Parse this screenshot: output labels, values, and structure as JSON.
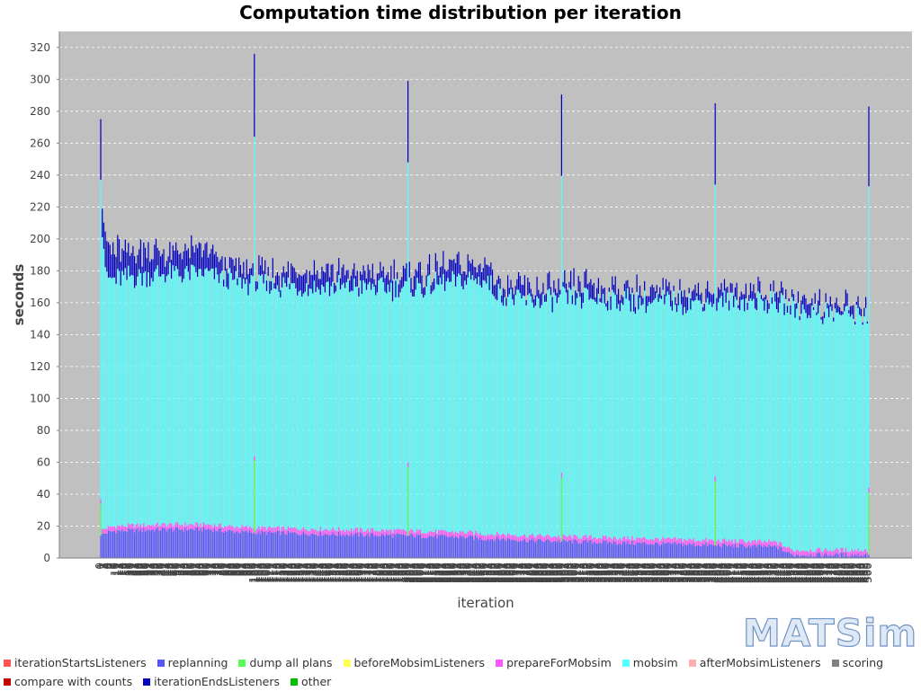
{
  "chart_data": {
    "type": "bar",
    "stacked": true,
    "title": "Computation time distribution per iteration",
    "xlabel": "iteration",
    "ylabel": "seconds",
    "ylim": [
      0,
      330
    ],
    "yticks": [
      0,
      20,
      40,
      60,
      80,
      100,
      120,
      140,
      160,
      180,
      200,
      220,
      240,
      260,
      280,
      300,
      320
    ],
    "x_range": [
      0,
      500
    ],
    "grid": true,
    "legend_position": "bottom",
    "legend": [
      {
        "name": "iterationStartsListeners",
        "color": "#ff5555"
      },
      {
        "name": "replanning",
        "color": "#5555ff"
      },
      {
        "name": "dump all plans",
        "color": "#55ff55"
      },
      {
        "name": "beforeMobsimListeners",
        "color": "#ffff55"
      },
      {
        "name": "prepareForMobsim",
        "color": "#ff55ff"
      },
      {
        "name": "mobsim",
        "color": "#55ffff"
      },
      {
        "name": "afterMobsimListeners",
        "color": "#ffafaf"
      },
      {
        "name": "scoring",
        "color": "#808080"
      },
      {
        "name": "compare with counts",
        "color": "#c00000"
      },
      {
        "name": "iterationEndsListeners",
        "color": "#0000c0"
      },
      {
        "name": "other",
        "color": "#00c000"
      }
    ],
    "segments": {
      "x": [
        0,
        4,
        10,
        40,
        70,
        80,
        100,
        200,
        240,
        250,
        260,
        280,
        320,
        360,
        400,
        440,
        450,
        480,
        500
      ],
      "replanning": [
        14,
        16,
        17,
        18,
        18,
        17,
        16,
        14,
        13,
        12,
        12,
        11,
        10,
        9,
        8,
        7,
        2,
        2,
        2
      ],
      "prepareForMobsim": [
        3,
        3,
        3,
        3,
        3,
        3,
        3,
        3,
        3,
        3,
        3,
        3,
        3,
        3,
        3,
        3,
        3,
        3,
        3
      ],
      "mobsim": [
        200,
        155,
        155,
        157,
        157,
        155,
        152,
        152,
        158,
        160,
        150,
        147,
        150,
        148,
        150,
        150,
        152,
        148,
        148
      ],
      "iterationEndsListeners": [
        17,
        16,
        17,
        12,
        11,
        7,
        6,
        7,
        8,
        10,
        7,
        6,
        5,
        5,
        4,
        4,
        4,
        4,
        4
      ]
    },
    "spikes": [
      {
        "x": 0,
        "dump_all_plans": 20,
        "mobsim": 200,
        "iterationEndsListeners": 38
      },
      {
        "x": 100,
        "dump_all_plans": 45,
        "mobsim": 200,
        "iterationEndsListeners": 52
      },
      {
        "x": 200,
        "dump_all_plans": 43,
        "mobsim": 188,
        "iterationEndsListeners": 51
      },
      {
        "x": 300,
        "dump_all_plans": 40,
        "mobsim": 186,
        "iterationEndsListeners": 51
      },
      {
        "x": 400,
        "dump_all_plans": 40,
        "mobsim": 183,
        "iterationEndsListeners": 51
      },
      {
        "x": 500,
        "dump_all_plans": 39,
        "mobsim": 189,
        "iterationEndsListeners": 50
      }
    ]
  },
  "logo": {
    "text": "MATSim"
  }
}
